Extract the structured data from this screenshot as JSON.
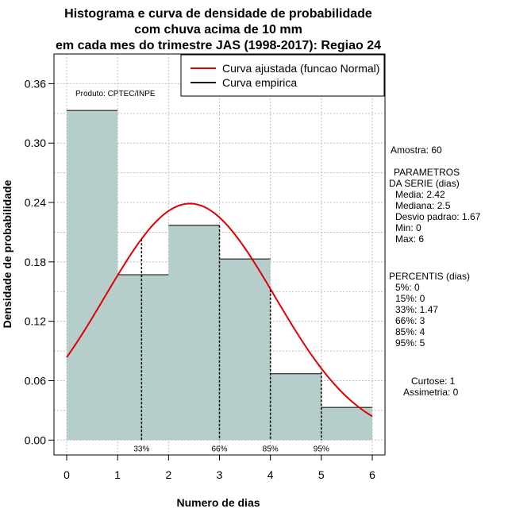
{
  "chart_data": {
    "type": "bar",
    "title_lines": [
      "Histograma e curva de densidade de probabilidade",
      "com chuva acima de 10 mm",
      "em cada mes do trimestre JAS (1998-2017): Regiao 24"
    ],
    "xlabel": "Numero de dias",
    "ylabel": "Densidade de probabilidade",
    "xlim": [
      -0.25,
      6.25
    ],
    "ylim": [
      -0.015,
      0.39
    ],
    "x_ticks": [
      "0",
      "1",
      "2",
      "3",
      "4",
      "5",
      "6"
    ],
    "y_ticks": [
      "0.00",
      "0.06",
      "0.12",
      "0.18",
      "0.24",
      "0.30",
      "0.36"
    ],
    "grid": true,
    "bins": [
      {
        "x0": 0,
        "x1": 1,
        "density": 0.333
      },
      {
        "x0": 1,
        "x1": 2,
        "density": 0.167
      },
      {
        "x0": 2,
        "x1": 3,
        "density": 0.217
      },
      {
        "x0": 3,
        "x1": 4,
        "density": 0.183
      },
      {
        "x0": 4,
        "x1": 5,
        "density": 0.067
      },
      {
        "x0": 5,
        "x1": 6,
        "density": 0.033
      }
    ],
    "bar_color": "#b5cdcb",
    "normal_curve": {
      "mean": 2.42,
      "sd": 1.67,
      "color": "#e00000"
    },
    "percentile_markers": [
      {
        "label": "33%",
        "x": 1.47,
        "y": 0.203
      },
      {
        "label": "66%",
        "x": 3,
        "y": 0.217
      },
      {
        "label": "85%",
        "x": 4,
        "y": 0.152
      },
      {
        "label": "95%",
        "x": 5,
        "y": 0.069
      }
    ],
    "legend": {
      "position": "top-right",
      "entries": [
        {
          "label": "Curva ajustada (funcao Normal)",
          "color": "#e00000"
        },
        {
          "label": "Curva empirica",
          "color": "#000000"
        }
      ]
    },
    "credit": "Produto: CPTEC/INPE"
  },
  "side_panel": {
    "sample": "Amostra: 60",
    "params_title_1": "PARAMETROS",
    "params_title_2": "DA SERIE (dias)",
    "params": [
      "Media: 2.42",
      "Mediana: 2.5",
      "Desvio padrao: 1.67",
      "Min: 0",
      "Max: 6"
    ],
    "percentis_title": "PERCENTIS (dias)",
    "percentis": [
      "5%: 0",
      "15%: 0",
      "33%: 1.47",
      "66%: 3",
      "85%: 4",
      "95%: 5"
    ],
    "curtose": "Curtose: 1",
    "assimetria": "Assimetria: 0"
  }
}
